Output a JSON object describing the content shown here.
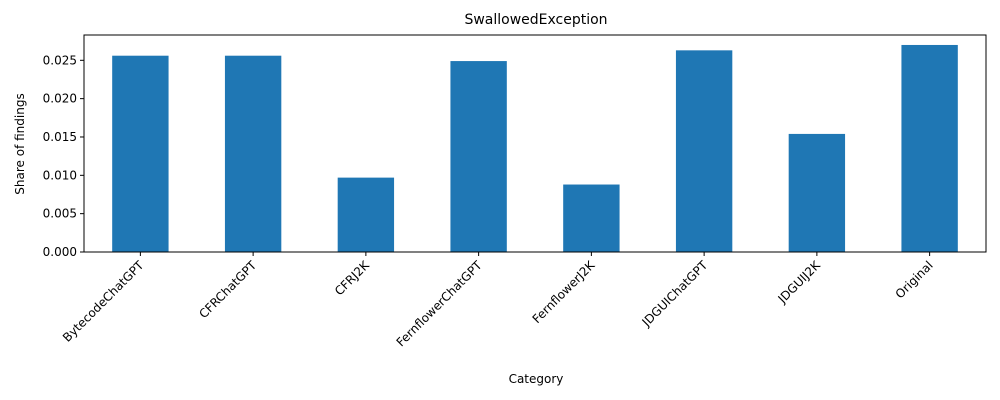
{
  "chart_data": {
    "type": "bar",
    "title": "SwallowedException",
    "xlabel": "Category",
    "ylabel": "Share of findings",
    "categories": [
      "BytecodeChatGPT",
      "CFRChatGPT",
      "CFRJ2K",
      "FernflowerChatGPT",
      "FernflowerJ2K",
      "JDGUIChatGPT",
      "JDGUIJ2K",
      "Original"
    ],
    "values": [
      0.0256,
      0.0256,
      0.0097,
      0.0249,
      0.0088,
      0.0263,
      0.0154,
      0.027
    ],
    "yticks": [
      "0.000",
      "0.005",
      "0.010",
      "0.015",
      "0.020",
      "0.025"
    ],
    "ylim": [
      0,
      0.0283
    ],
    "bar_color": "#1f77b4",
    "grid": false,
    "legend": "none"
  }
}
